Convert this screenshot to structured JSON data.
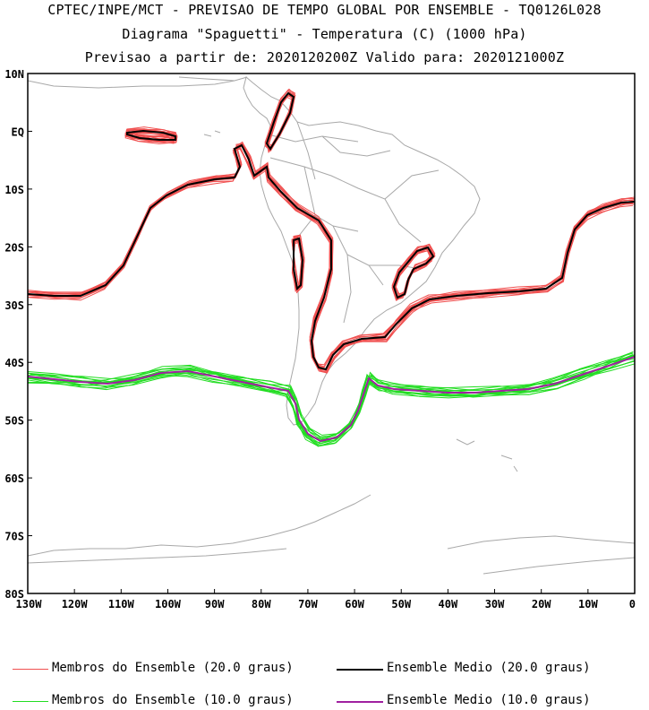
{
  "header": {
    "line1": "CPTEC/INPE/MCT - PREVISAO DE TEMPO GLOBAL POR ENSEMBLE - TQ0126L028",
    "line2": "Diagrama \"Spaguetti\" - Temperatura (C) (1000 hPa)",
    "line3": "Previsao a partir de: 2020120200Z  Valido para: 2020121000Z"
  },
  "map": {
    "lon_range": [
      -130,
      0
    ],
    "lat_range": [
      -80,
      10
    ],
    "lat_ticks": [
      "10N",
      "EQ",
      "10S",
      "20S",
      "30S",
      "40S",
      "50S",
      "60S",
      "70S",
      "80S"
    ],
    "lon_ticks": [
      "130W",
      "120W",
      "110W",
      "100W",
      "90W",
      "80W",
      "70W",
      "60W",
      "50W",
      "40W",
      "30W",
      "20W",
      "10W",
      "0"
    ],
    "colors": {
      "members_20": "#f05050",
      "mean_20": "#000000",
      "members_10": "#22dd22",
      "mean_10": "#a020a0",
      "coast": "#a8a8a8"
    }
  },
  "legend": {
    "members_20": "Membros do Ensemble (20.0 graus)",
    "mean_20": "Ensemble Medio (20.0 graus)",
    "members_10": "Membros do Ensemble (10.0 graus)",
    "mean_10": "Ensemble Medio (10.0 graus)"
  }
}
